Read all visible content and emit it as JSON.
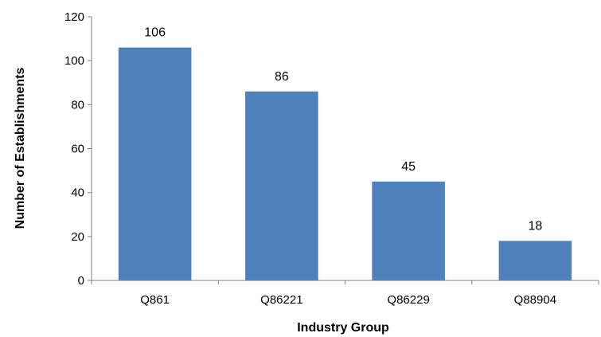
{
  "chart_data": {
    "type": "bar",
    "categories": [
      "Q861",
      "Q86221",
      "Q86229",
      "Q88904"
    ],
    "values": [
      106,
      86,
      45,
      18
    ],
    "data_labels": [
      "106",
      "86",
      "45",
      "18"
    ],
    "title": "",
    "xlabel": "Industry Group",
    "ylabel": "Number of Establishments",
    "ylim": [
      0,
      120
    ],
    "yticks": [
      0,
      20,
      40,
      60,
      80,
      100,
      120
    ],
    "grid": false,
    "legend": "none",
    "bar_color": "#4F81BD",
    "axis_color": "#808080"
  }
}
